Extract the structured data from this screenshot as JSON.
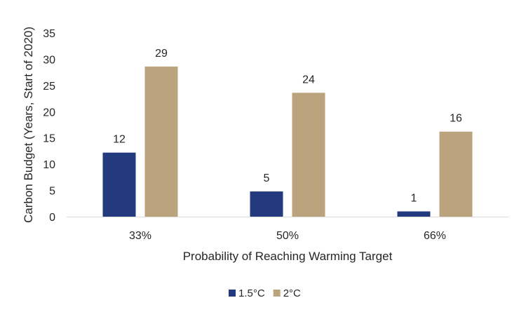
{
  "chart_data": {
    "type": "bar",
    "title": "",
    "xlabel": "Probability of Reaching Warming Target",
    "ylabel": "Carbon Budget (Years, Start of 2020)",
    "categories": [
      "33%",
      "50%",
      "66%"
    ],
    "ylim": [
      0,
      35
    ],
    "yticks": [
      0,
      5,
      10,
      15,
      20,
      25,
      30,
      35
    ],
    "grid": false,
    "legend_position": "bottom",
    "series": [
      {
        "name": "1.5°C",
        "color": "#233A7E",
        "values": [
          12.2,
          4.8,
          1.0
        ],
        "labels": [
          "12",
          "5",
          "1"
        ]
      },
      {
        "name": "2°C",
        "color": "#BBA37E",
        "values": [
          28.6,
          23.6,
          16.2
        ],
        "labels": [
          "29",
          "24",
          "16"
        ]
      }
    ]
  }
}
